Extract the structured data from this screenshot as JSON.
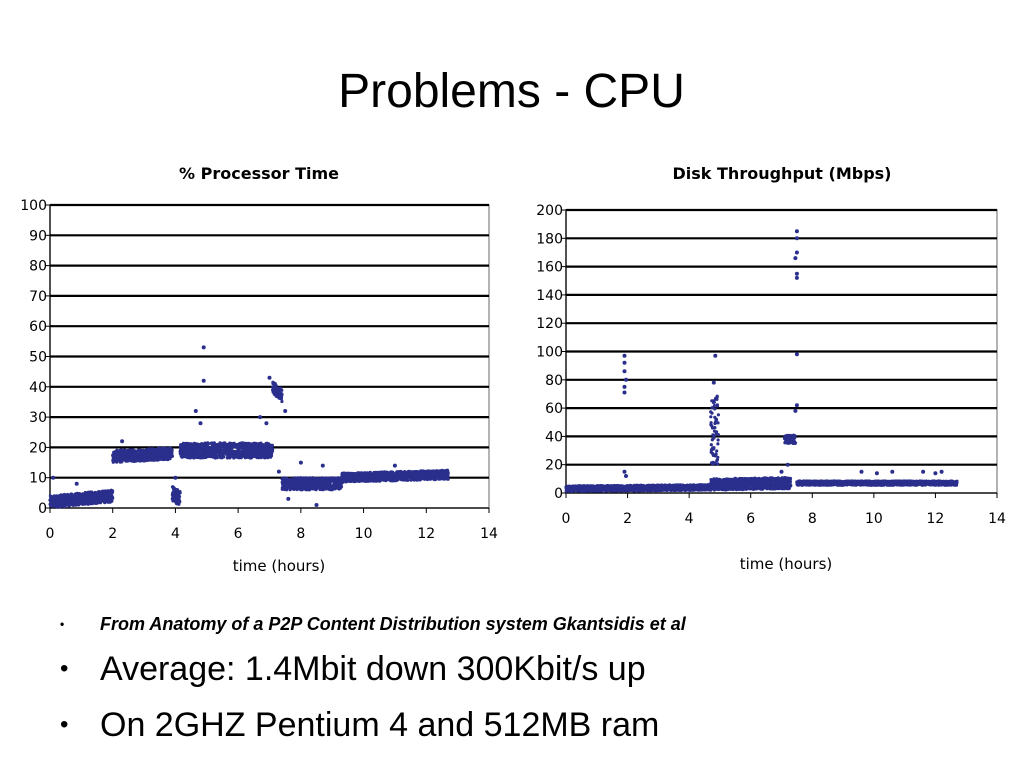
{
  "slide": {
    "title": "Problems - CPU",
    "bullets": [
      {
        "text": "From Anatomy of a P2P Content Distribution system Gkantsidis et al",
        "style": "small-italic"
      },
      {
        "text": "Average: 1.4Mbit down  300Kbit/s up",
        "style": "large"
      },
      {
        "text": "On 2GHZ Pentium 4  and 512MB ram",
        "style": "large"
      }
    ],
    "bullet_glyph": "•"
  },
  "chart_data": [
    {
      "type": "scatter",
      "title": "% Processor Time",
      "xlabel": "time (hours)",
      "ylabel": "",
      "xlim": [
        0,
        14
      ],
      "ylim": [
        0,
        100
      ],
      "xticks": [
        0,
        2,
        4,
        6,
        8,
        10,
        12,
        14
      ],
      "yticks": [
        0,
        10,
        20,
        30,
        40,
        50,
        60,
        70,
        80,
        90,
        100
      ],
      "grid": "horizontal",
      "marker_color": "#2b2f8c",
      "segments": [
        {
          "x": [
            0.0,
            2.0
          ],
          "y": [
            2,
            4
          ],
          "spread": 4
        },
        {
          "x": [
            2.0,
            3.9
          ],
          "y": [
            17,
            18
          ],
          "spread": 4
        },
        {
          "x": [
            3.9,
            4.15
          ],
          "y": [
            5,
            3
          ],
          "spread": 5
        },
        {
          "x": [
            4.15,
            7.1
          ],
          "y": [
            19,
            19
          ],
          "spread": 5
        },
        {
          "x": [
            7.1,
            7.4
          ],
          "y": [
            40,
            37
          ],
          "spread": 4
        },
        {
          "x": [
            7.4,
            9.3
          ],
          "y": [
            8,
            8
          ],
          "spread": 4
        },
        {
          "x": [
            9.3,
            12.7
          ],
          "y": [
            10,
            11
          ],
          "spread": 3
        }
      ],
      "outliers": [
        {
          "x": 4.9,
          "y": 53
        },
        {
          "x": 4.9,
          "y": 42
        },
        {
          "x": 4.65,
          "y": 32
        },
        {
          "x": 4.8,
          "y": 28
        },
        {
          "x": 6.7,
          "y": 30
        },
        {
          "x": 6.9,
          "y": 28
        },
        {
          "x": 0.85,
          "y": 8
        },
        {
          "x": 0.1,
          "y": 10
        },
        {
          "x": 4.0,
          "y": 10
        },
        {
          "x": 8.0,
          "y": 15
        },
        {
          "x": 8.7,
          "y": 14
        },
        {
          "x": 7.3,
          "y": 12
        },
        {
          "x": 7.6,
          "y": 3
        },
        {
          "x": 8.5,
          "y": 1
        },
        {
          "x": 2.3,
          "y": 22
        },
        {
          "x": 7.0,
          "y": 43
        },
        {
          "x": 7.5,
          "y": 32
        },
        {
          "x": 11.0,
          "y": 14
        }
      ]
    },
    {
      "type": "scatter",
      "title": "Disk Throughput (Mbps)",
      "xlabel": "time (hours)",
      "ylabel": "",
      "xlim": [
        0,
        14
      ],
      "ylim": [
        0,
        200
      ],
      "xticks": [
        0,
        2,
        4,
        6,
        8,
        10,
        12,
        14
      ],
      "yticks": [
        0,
        20,
        40,
        60,
        80,
        100,
        120,
        140,
        160,
        180,
        200
      ],
      "grid": "horizontal",
      "marker_color": "#2b2f8c",
      "segments": [
        {
          "x": [
            0.0,
            4.7
          ],
          "y": [
            3,
            4
          ],
          "spread": 4
        },
        {
          "x": [
            4.7,
            7.3
          ],
          "y": [
            6,
            7
          ],
          "spread": 8
        },
        {
          "x": [
            7.1,
            7.45
          ],
          "y": [
            38,
            38
          ],
          "spread": 6
        },
        {
          "x": [
            7.5,
            12.7
          ],
          "y": [
            7,
            7
          ],
          "spread": 3
        },
        {
          "x": [
            4.7,
            4.95
          ],
          "y": [
            45,
            45
          ],
          "spread": 50
        }
      ],
      "outliers": [
        {
          "x": 1.9,
          "y": 97
        },
        {
          "x": 1.9,
          "y": 92
        },
        {
          "x": 1.9,
          "y": 86
        },
        {
          "x": 1.95,
          "y": 80
        },
        {
          "x": 1.9,
          "y": 75
        },
        {
          "x": 1.9,
          "y": 71
        },
        {
          "x": 1.9,
          "y": 15
        },
        {
          "x": 1.95,
          "y": 12
        },
        {
          "x": 4.85,
          "y": 97
        },
        {
          "x": 4.8,
          "y": 78
        },
        {
          "x": 7.5,
          "y": 185
        },
        {
          "x": 7.5,
          "y": 180
        },
        {
          "x": 7.5,
          "y": 170
        },
        {
          "x": 7.45,
          "y": 166
        },
        {
          "x": 7.5,
          "y": 155
        },
        {
          "x": 7.5,
          "y": 152
        },
        {
          "x": 7.5,
          "y": 98
        },
        {
          "x": 7.5,
          "y": 62
        },
        {
          "x": 7.45,
          "y": 58
        },
        {
          "x": 7.2,
          "y": 20
        },
        {
          "x": 7.0,
          "y": 15
        },
        {
          "x": 9.6,
          "y": 15
        },
        {
          "x": 10.6,
          "y": 15
        },
        {
          "x": 11.6,
          "y": 15
        },
        {
          "x": 12.2,
          "y": 15
        },
        {
          "x": 12.0,
          "y": 14
        },
        {
          "x": 10.1,
          "y": 14
        }
      ]
    }
  ]
}
